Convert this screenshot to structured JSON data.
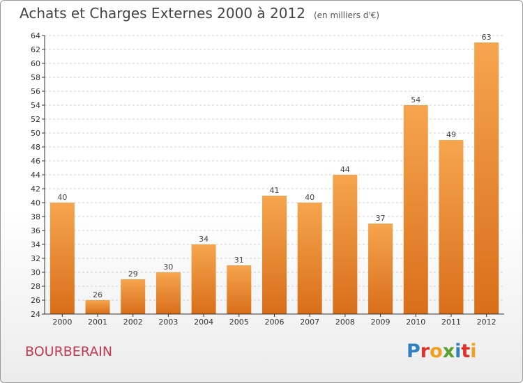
{
  "title": "Achats et Charges Externes 2000 à 2012",
  "unit": "(en milliers d'€)",
  "city": "BOURBERAIN",
  "logo": {
    "text": "Proxiti",
    "letters": [
      {
        "ch": "P",
        "color": "#2f7fc1"
      },
      {
        "ch": "r",
        "color": "#e0312b"
      },
      {
        "ch": "o",
        "color": "#f0a020"
      },
      {
        "ch": "x",
        "color": "#5aa02c"
      },
      {
        "ch": "i",
        "color": "#2f7fc1"
      },
      {
        "ch": "t",
        "color": "#e0312b"
      },
      {
        "ch": "i",
        "color": "#f0a020"
      }
    ]
  },
  "chart_data": {
    "type": "bar",
    "categories": [
      "2000",
      "2001",
      "2002",
      "2003",
      "2004",
      "2005",
      "2006",
      "2007",
      "2008",
      "2009",
      "2010",
      "2011",
      "2012"
    ],
    "values": [
      40,
      26,
      29,
      30,
      34,
      31,
      41,
      40,
      44,
      37,
      54,
      49,
      63
    ],
    "ylim": [
      24,
      64
    ],
    "yticks": [
      24,
      26,
      28,
      30,
      32,
      34,
      36,
      38,
      40,
      42,
      44,
      46,
      48,
      50,
      52,
      54,
      56,
      58,
      60,
      62,
      64
    ],
    "grid": "horizontal-dashed",
    "colors": {
      "bar_top": "#f6a54e",
      "bar_bottom": "#d96e1a",
      "grid": "#cfcfcf",
      "axis": "#333333"
    }
  }
}
